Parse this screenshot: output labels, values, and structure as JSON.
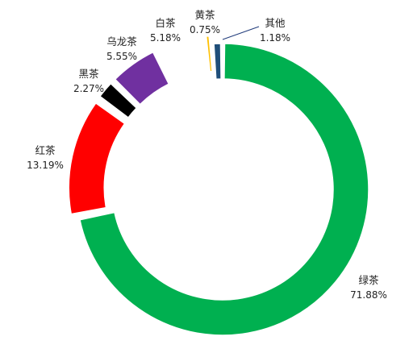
{
  "chart_data": {
    "type": "pie",
    "variant": "donut",
    "title": "",
    "slices": [
      {
        "label": "绿茶",
        "value": 71.88,
        "display": "71.88%",
        "color": "#00b050",
        "exploded": false
      },
      {
        "label": "红茶",
        "value": 13.19,
        "display": "13.19%",
        "color": "#ff0000",
        "exploded": true
      },
      {
        "label": "黑茶",
        "value": 2.27,
        "display": "2.27%",
        "color": "#000000",
        "exploded": true
      },
      {
        "label": "乌龙茶",
        "value": 5.55,
        "display": "5.55%",
        "color": "#7030a0",
        "exploded": true
      },
      {
        "label": "白茶",
        "value": 5.18,
        "display": "5.18%",
        "color": "#ffffff",
        "exploded": true
      },
      {
        "label": "黄茶",
        "value": 0.75,
        "display": "0.75%",
        "color": "#ffc000",
        "exploded": true
      },
      {
        "label": "其他",
        "value": 1.18,
        "display": "1.18%",
        "color": "#1f4e79",
        "exploded": false
      }
    ]
  }
}
